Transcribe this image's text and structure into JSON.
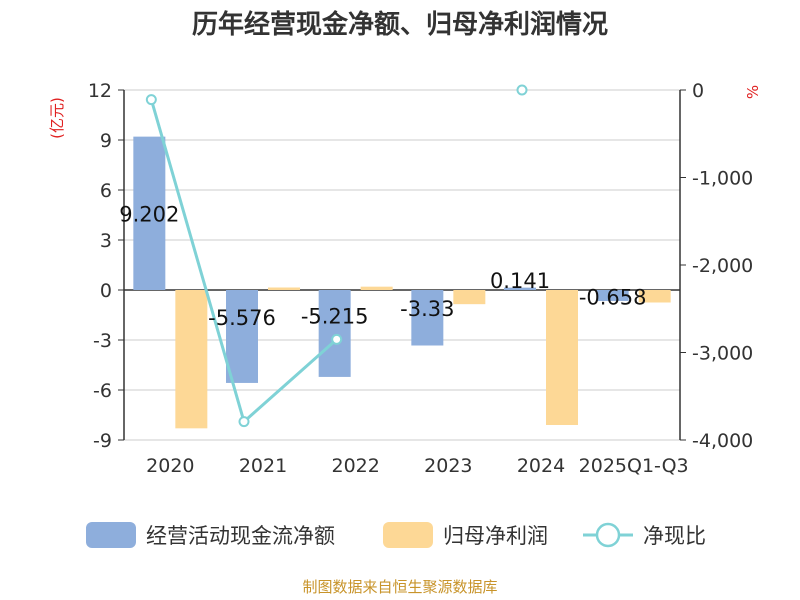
{
  "chart_data": {
    "type": "bar",
    "title": "历年经营现金净额、归母净利润情况",
    "categories": [
      "2020",
      "2021",
      "2022",
      "2023",
      "2024",
      "2025Q1-Q3"
    ],
    "series": [
      {
        "name": "经营活动现金流净额",
        "type": "bar",
        "axis": "left",
        "color": "#8eaedc",
        "values": [
          9.202,
          -5.576,
          -5.215,
          -3.33,
          0.141,
          -0.658
        ],
        "labels": [
          "9.202",
          "-5.576",
          "-5.215",
          "-3.33",
          "0.141",
          "-0.658"
        ]
      },
      {
        "name": "归母净利润",
        "type": "bar",
        "axis": "left",
        "color": "#fdd896",
        "values": [
          -8.3,
          0.15,
          0.2,
          -0.85,
          -8.1,
          -0.75
        ]
      },
      {
        "name": "净现比",
        "type": "line",
        "axis": "right",
        "color": "#7fd2d6",
        "values": [
          -110,
          -3790,
          -2850,
          null,
          0,
          null
        ]
      }
    ],
    "left_axis": {
      "label": "(亿元)",
      "ylim": [
        -9,
        12
      ],
      "ticks": [
        12,
        9,
        6,
        3,
        0,
        -3,
        -6,
        -9
      ]
    },
    "right_axis": {
      "label": "%",
      "ylim": [
        -4000,
        0
      ],
      "ticks": [
        0,
        -1000,
        -2000,
        -3000,
        -4000
      ],
      "tick_labels": [
        "0",
        "-1,000",
        "-2,000",
        "-3,000",
        "-4,000"
      ]
    },
    "legend_position": "bottom",
    "grid": true,
    "source": "制图数据来自恒生聚源数据库"
  }
}
